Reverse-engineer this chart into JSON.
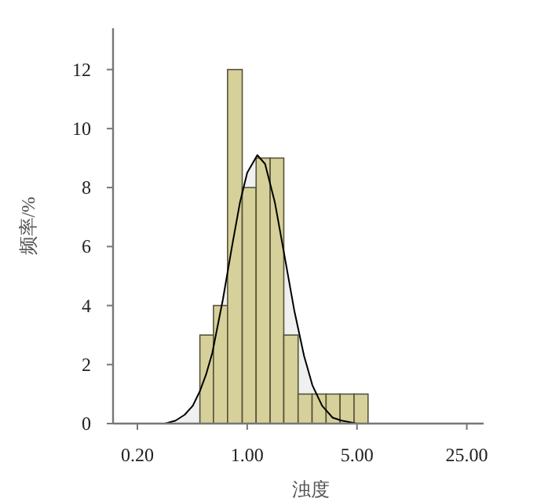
{
  "chart_data": {
    "type": "histogram",
    "xlabel": "浊度",
    "ylabel": "频率/%",
    "log": "x",
    "bins": [
      0.5,
      0.61,
      0.75,
      0.93,
      1.14,
      1.4,
      1.71,
      2.11,
      2.59,
      3.18,
      3.9,
      4.79,
      5.88
    ],
    "values": [
      3,
      4,
      12,
      8,
      9,
      9,
      3,
      1,
      1,
      1,
      1,
      1
    ],
    "color": "#d6d19a",
    "series": [
      {
        "type": "area",
        "color": "#000000",
        "x": [
          0.25,
          0.3,
          0.35,
          0.4,
          0.45,
          0.5,
          0.55,
          0.6,
          0.7,
          0.8,
          0.9,
          1.0,
          1.16,
          1.3,
          1.5,
          1.7,
          2.0,
          2.3,
          2.6,
          3.0,
          3.5,
          4.0,
          5.0
        ],
        "values": [
          0,
          0,
          0.1,
          0.3,
          0.6,
          1.1,
          1.7,
          2.4,
          4.2,
          6,
          7.5,
          8.5,
          9.1,
          8.8,
          7.5,
          5.9,
          3.8,
          2.3,
          1.3,
          0.6,
          0.2,
          0.1,
          0
        ]
      }
    ],
    "xlim": [
      0.14,
      32
    ],
    "ylim": [
      0,
      13.4
    ],
    "xticks": [
      {
        "value": 0.2,
        "label": "0.20"
      },
      {
        "value": 1,
        "label": "1.00"
      },
      {
        "value": 5,
        "label": "5.00"
      },
      {
        "value": 25,
        "label": "25.00"
      }
    ],
    "yticks": [
      0,
      2,
      4,
      6,
      8,
      10,
      12
    ],
    "grid": false
  }
}
